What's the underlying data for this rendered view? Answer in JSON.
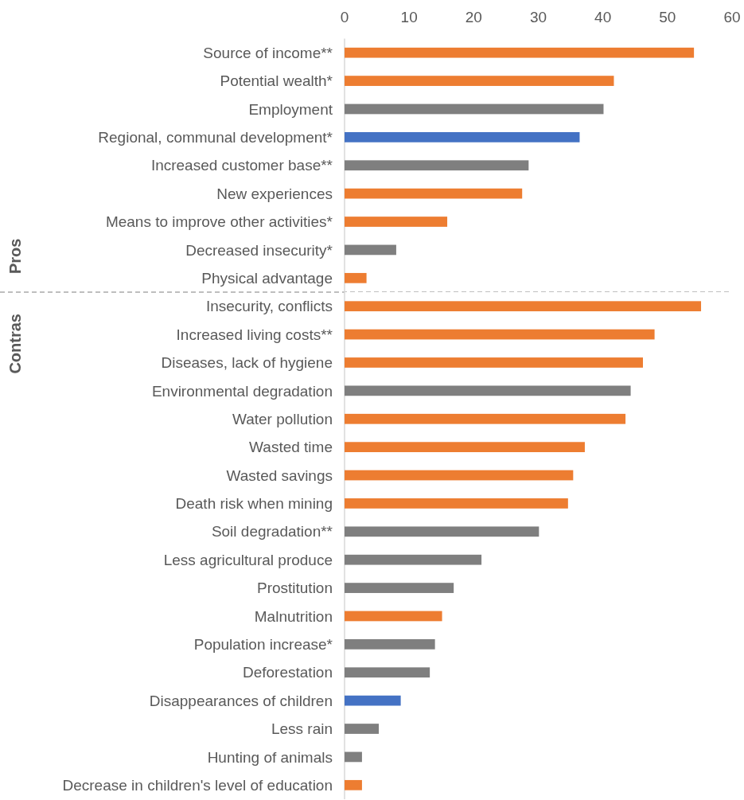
{
  "chart_data": [
    {
      "type": "bar",
      "orientation": "horizontal",
      "title": "Pros",
      "categories": [
        "Source of income**",
        "Potential wealth*",
        "Employment",
        "Regional, communal development*",
        "Increased customer base**",
        "New experiences",
        "Means to improve other activities*",
        "Decreased insecurity*",
        "Physical advantage"
      ],
      "values": [
        54.1,
        41.7,
        40.1,
        36.4,
        28.5,
        27.5,
        15.9,
        8.0,
        3.4
      ],
      "colors": [
        "#ed7d31",
        "#ed7d31",
        "#7f7f7f",
        "#4472c4",
        "#7f7f7f",
        "#ed7d31",
        "#ed7d31",
        "#7f7f7f",
        "#ed7d31"
      ],
      "xlim": [
        0,
        60
      ],
      "xticks": [
        0,
        10,
        20,
        30,
        40,
        50,
        60
      ],
      "grid": false
    },
    {
      "type": "bar",
      "orientation": "horizontal",
      "title": "Contras",
      "categories": [
        "Insecurity, conflicts",
        "Increased living costs**",
        "Diseases, lack of hygiene",
        "Environmental degradation",
        "Water pollution",
        "Wasted time",
        "Wasted savings",
        "Death risk when mining",
        "Soil degradation**",
        "Less agricultural produce",
        "Prostitution",
        "Malnutrition",
        "Population increase*",
        "Deforestation",
        "Disappearances of children",
        "Less rain",
        "Hunting of animals",
        "Decrease in children's level of education"
      ],
      "values": [
        55.2,
        48.0,
        46.2,
        44.3,
        43.5,
        37.2,
        35.4,
        34.6,
        30.1,
        21.2,
        16.9,
        15.1,
        14.0,
        13.2,
        8.7,
        5.3,
        2.7,
        2.7
      ],
      "colors": [
        "#ed7d31",
        "#ed7d31",
        "#ed7d31",
        "#7f7f7f",
        "#ed7d31",
        "#ed7d31",
        "#ed7d31",
        "#ed7d31",
        "#7f7f7f",
        "#7f7f7f",
        "#7f7f7f",
        "#ed7d31",
        "#7f7f7f",
        "#7f7f7f",
        "#4472c4",
        "#7f7f7f",
        "#7f7f7f",
        "#ed7d31"
      ],
      "xlim": [
        0,
        60
      ],
      "grid": false,
      "tick_labels": "y"
    }
  ]
}
